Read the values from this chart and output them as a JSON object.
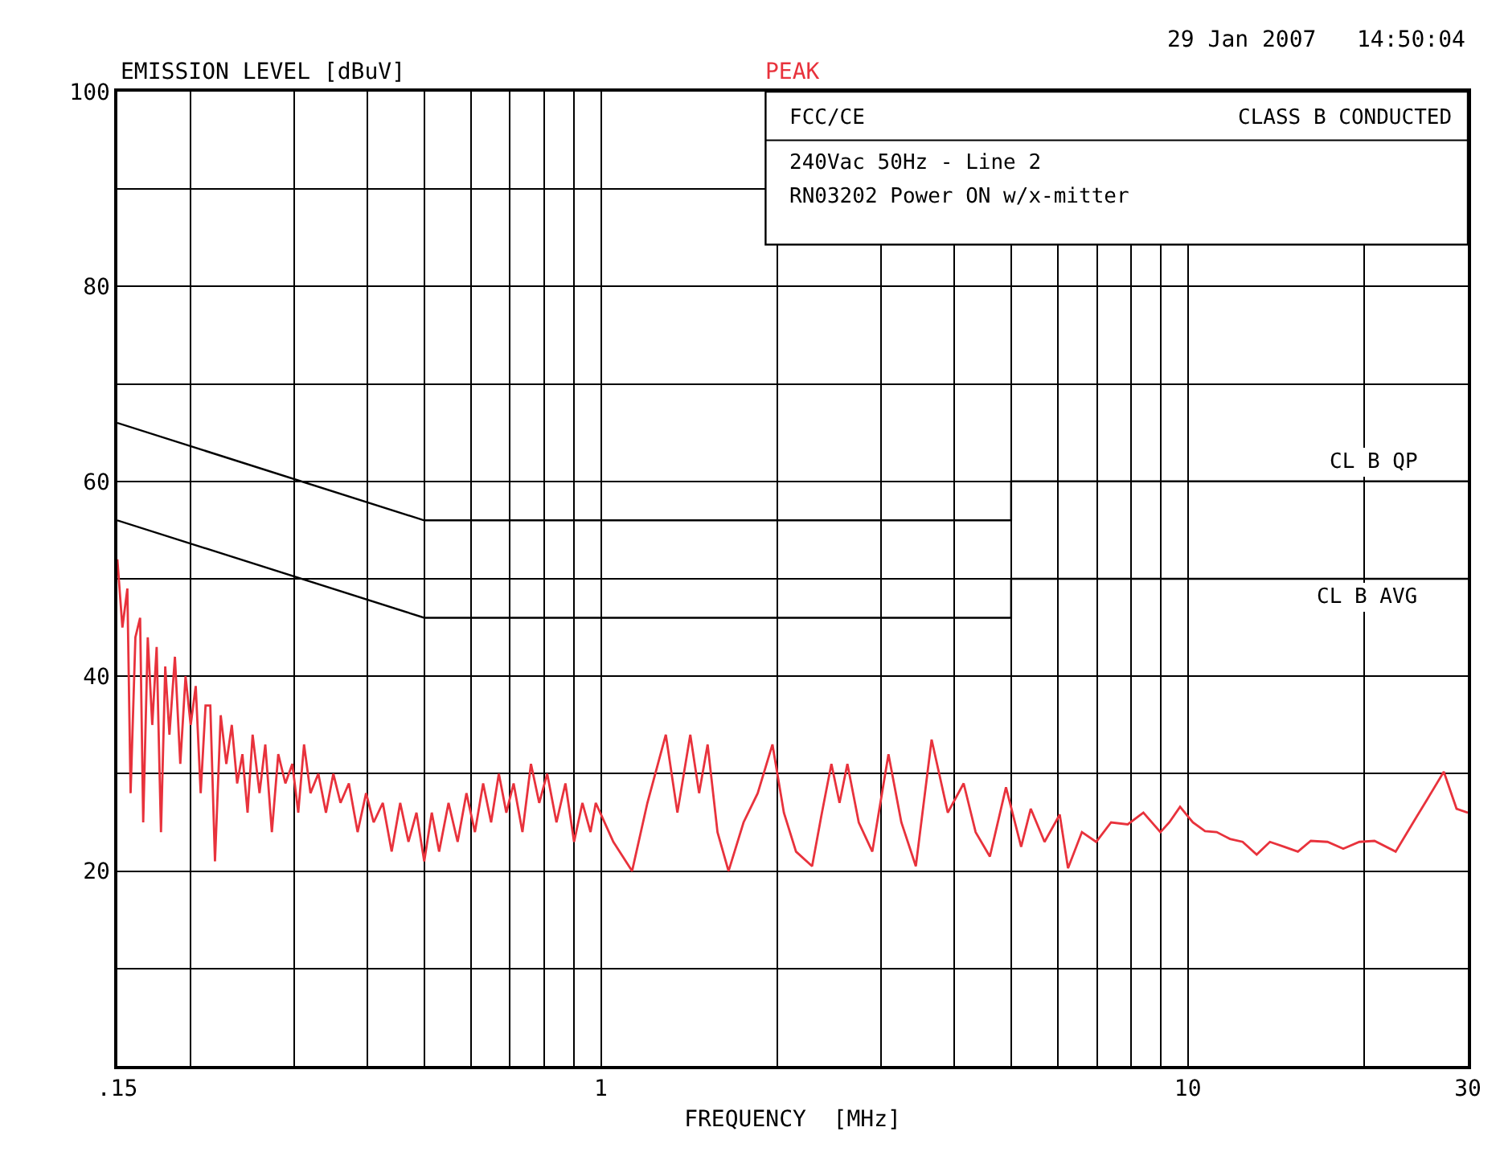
{
  "chart_data": {
    "type": "line",
    "ylabel": "EMISSION LEVEL [dBuV]",
    "xlabel": "FREQUENCY  [MHz]",
    "annotations": [
      "29 Jan 2007   14:50:04",
      "FCC/CE",
      "CLASS B CONDUCTED",
      "240Vac 50Hz - Line 2",
      "RN03202 Power ON w/x-mitter"
    ],
    "log": "x",
    "xlim": [
      0.15,
      30
    ],
    "xticks": [
      {
        "value": 0.15,
        "label": ".15"
      },
      {
        "value": 0.2,
        "label": null
      },
      {
        "value": 0.3,
        "label": null
      },
      {
        "value": 0.4,
        "label": null
      },
      {
        "value": 0.5,
        "label": null
      },
      {
        "value": 0.6,
        "label": null
      },
      {
        "value": 0.7,
        "label": null
      },
      {
        "value": 0.8,
        "label": null
      },
      {
        "value": 0.9,
        "label": null
      },
      1,
      {
        "value": 2,
        "label": null
      },
      {
        "value": 3,
        "label": null
      },
      {
        "value": 4,
        "label": null
      },
      {
        "value": 5,
        "label": null
      },
      {
        "value": 6,
        "label": null
      },
      {
        "value": 7,
        "label": null
      },
      {
        "value": 8,
        "label": null
      },
      {
        "value": 9,
        "label": null
      },
      10,
      {
        "value": 20,
        "label": null
      },
      30
    ],
    "ylim": [
      0,
      100
    ],
    "yticks": [
      {
        "value": 10,
        "label": null
      },
      20,
      {
        "value": 30,
        "label": null
      },
      40,
      {
        "value": 50,
        "label": null
      },
      60,
      {
        "value": 70,
        "label": null
      },
      80,
      {
        "value": 90,
        "label": null
      },
      100
    ],
    "grid": true,
    "legend": false,
    "series": [
      {
        "name": "PEAK",
        "color": "#e8323c",
        "x": [
          0.15,
          0.153,
          0.156,
          0.158,
          0.161,
          0.164,
          0.166,
          0.169,
          0.172,
          0.175,
          0.178,
          0.181,
          0.184,
          0.188,
          0.192,
          0.196,
          0.2,
          0.204,
          0.208,
          0.212,
          0.216,
          0.22,
          0.225,
          0.23,
          0.235,
          0.24,
          0.245,
          0.25,
          0.255,
          0.262,
          0.268,
          0.275,
          0.282,
          0.29,
          0.298,
          0.305,
          0.312,
          0.32,
          0.33,
          0.34,
          0.35,
          0.36,
          0.372,
          0.385,
          0.398,
          0.41,
          0.425,
          0.44,
          0.455,
          0.47,
          0.485,
          0.5,
          0.515,
          0.53,
          0.55,
          0.57,
          0.59,
          0.61,
          0.63,
          0.65,
          0.67,
          0.69,
          0.71,
          0.735,
          0.76,
          0.785,
          0.81,
          0.84,
          0.87,
          0.9,
          0.93,
          0.96,
          0.98,
          1.05,
          1.13,
          1.2,
          1.29,
          1.35,
          1.42,
          1.47,
          1.52,
          1.58,
          1.65,
          1.75,
          1.85,
          1.96,
          2.05,
          2.15,
          2.29,
          2.38,
          2.47,
          2.55,
          2.63,
          2.75,
          2.9,
          3.09,
          3.25,
          3.44,
          3.66,
          3.9,
          4.15,
          4.35,
          4.6,
          4.9,
          5.2,
          5.4,
          5.7,
          6.05,
          6.25,
          6.6,
          6.98,
          7.4,
          7.9,
          8.4,
          8.98,
          9.3,
          9.7,
          10.2,
          10.7,
          11.2,
          11.8,
          12.4,
          13.1,
          13.8,
          14.6,
          15.4,
          16.2,
          17.3,
          18.4,
          19.6,
          20.8,
          22.6,
          24.1,
          25.6,
          27.3,
          28.7,
          30
        ],
        "values": [
          52,
          45,
          49,
          28,
          44,
          46,
          25,
          44,
          35,
          43,
          24,
          41,
          34,
          42,
          31,
          40,
          35,
          39,
          28,
          37,
          37,
          21,
          36,
          31,
          35,
          29,
          32,
          26,
          34,
          28,
          33,
          24,
          32,
          29,
          31,
          26,
          33,
          28,
          30,
          26,
          30,
          27,
          29,
          24,
          28,
          25,
          27,
          22,
          27,
          23,
          26,
          21,
          26,
          22,
          27,
          23,
          28,
          24,
          29,
          25,
          30,
          26,
          29,
          24,
          31,
          27,
          30,
          25,
          29,
          23,
          27,
          24,
          27,
          23,
          20,
          27,
          34,
          26,
          34,
          28,
          33,
          24,
          20,
          25,
          28,
          33,
          26,
          22,
          20.5,
          26,
          31,
          27,
          31,
          25,
          22,
          32,
          25,
          20.5,
          33.5,
          26,
          29,
          24,
          21.5,
          28.6,
          22.5,
          26.4,
          23,
          25.8,
          20.3,
          24,
          23,
          25,
          24.8,
          26,
          24,
          25,
          26.6,
          25,
          24.1,
          24,
          23.3,
          23,
          21.7,
          23,
          22.5,
          22,
          23.1,
          23,
          22.3,
          23,
          23.1,
          22,
          24.8,
          27.4,
          30.2,
          26.4,
          26
        ]
      },
      {
        "name": "CL B QP",
        "color": "#000000",
        "x": [
          0.15,
          0.5,
          5,
          5,
          30
        ],
        "values": [
          66,
          56,
          56,
          60,
          60
        ]
      },
      {
        "name": "CL B AVG",
        "color": "#000000",
        "x": [
          0.15,
          0.5,
          5,
          5,
          30
        ],
        "values": [
          56,
          46,
          46,
          50,
          50
        ]
      }
    ]
  }
}
